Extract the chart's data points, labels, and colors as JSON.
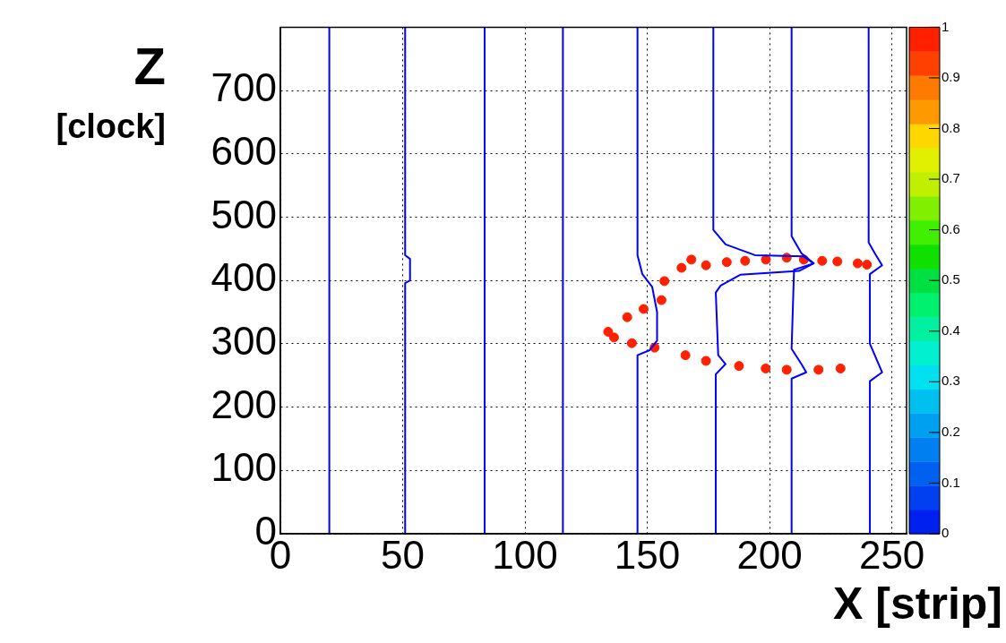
{
  "chart_data": {
    "type": "scatter",
    "xlabel": "X [strip]",
    "ylabel": "Z [clock]",
    "xlim": [
      0,
      256
    ],
    "xticks": [
      0,
      50,
      100,
      150,
      200,
      250
    ],
    "ylim": [
      0,
      800
    ],
    "yticks": [
      0,
      100,
      200,
      300,
      400,
      500,
      600,
      700
    ],
    "grid": true,
    "clim": [
      0,
      1
    ],
    "cticks": [
      0,
      0.1,
      0.2,
      0.3,
      0.4,
      0.5,
      0.6,
      0.7,
      0.8,
      0.9,
      1
    ],
    "series": [
      {
        "type": "line",
        "color": "#0000ff",
        "x": [
          20,
          20
        ],
        "values": [
          800,
          0
        ]
      },
      {
        "type": "line",
        "color": "#0000ff",
        "x": [
          51,
          51,
          53,
          53,
          51,
          51
        ],
        "values": [
          800,
          440,
          434,
          400,
          396,
          0
        ]
      },
      {
        "type": "line",
        "color": "#0000ff",
        "x": [
          83.5,
          83.5
        ],
        "values": [
          800,
          0
        ]
      },
      {
        "type": "line",
        "color": "#0000ff",
        "x": [
          115.5,
          115.5
        ],
        "values": [
          800,
          0
        ]
      },
      {
        "type": "line",
        "color": "#0000ff",
        "x": [
          146,
          146,
          148,
          152,
          154,
          154,
          151,
          146,
          146
        ],
        "values": [
          800,
          440,
          410,
          390,
          350,
          305,
          290,
          282,
          0
        ]
      },
      {
        "type": "line",
        "color": "#0000ff",
        "x": [
          177,
          177,
          182,
          194,
          214,
          218,
          212,
          188,
          180,
          178,
          179,
          182,
          178,
          178
        ],
        "values": [
          800,
          480,
          457,
          440,
          438,
          427,
          415,
          409,
          392,
          381,
          282,
          268,
          252,
          0
        ]
      },
      {
        "type": "line",
        "color": "#0000ff",
        "x": [
          209,
          209,
          213,
          218,
          210,
          209,
          213,
          215,
          209,
          209
        ],
        "values": [
          800,
          470,
          443,
          427,
          417,
          292,
          268,
          255,
          245,
          0
        ]
      },
      {
        "type": "line",
        "color": "#0000ff",
        "x": [
          240.5,
          240.5,
          243,
          246,
          241,
          241,
          246,
          241,
          241
        ],
        "values": [
          800,
          460,
          443,
          424,
          410,
          300,
          255,
          241,
          0
        ]
      },
      {
        "marker": "circle",
        "x": [
          141.8,
          148.5,
          155.8,
          157,
          164,
          168,
          174,
          182.5,
          190,
          198.5,
          207,
          214,
          221.5,
          227.7,
          236,
          239.8,
          134,
          136.4,
          143.7,
          153,
          165.6,
          174,
          187.5,
          198.4,
          207,
          220,
          229
        ],
        "values": [
          342,
          355,
          369,
          399,
          420,
          433,
          424,
          429,
          431,
          433,
          436,
          433,
          431,
          430,
          427,
          425,
          319,
          310,
          301,
          294,
          282,
          273,
          265,
          261,
          259,
          259,
          261
        ],
        "cvalues": [
          1,
          1,
          1,
          1,
          1,
          1,
          1,
          1,
          1,
          1,
          1,
          1,
          1,
          1,
          1,
          1,
          1,
          1,
          1,
          1,
          1,
          1,
          1,
          1,
          1,
          1,
          1
        ]
      }
    ]
  }
}
